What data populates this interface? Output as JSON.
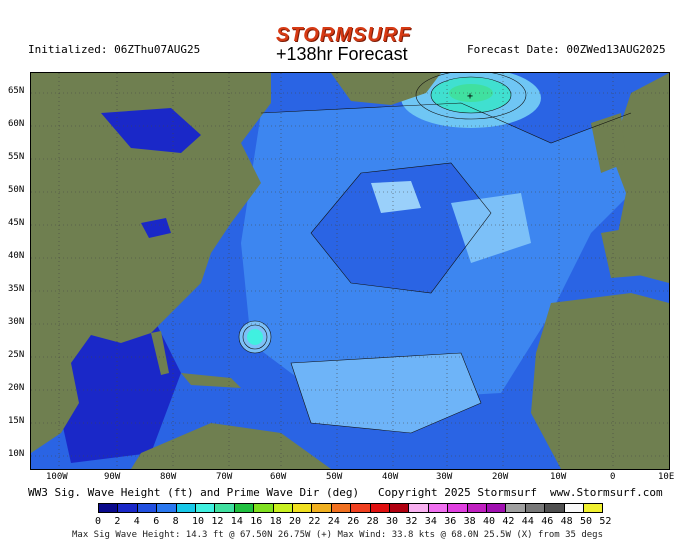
{
  "brand": "STORMSURF",
  "title": "+138hr Forecast",
  "initialized": "Initialized: 06ZThu07AUG25",
  "forecast_date": "Forecast Date: 00ZWed13AUG2025",
  "lat_labels": [
    "65N",
    "60N",
    "55N",
    "50N",
    "45N",
    "40N",
    "35N",
    "30N",
    "25N",
    "20N",
    "15N",
    "10N"
  ],
  "lon_labels": [
    "100W",
    "90W",
    "80W",
    "70W",
    "60W",
    "50W",
    "40W",
    "30W",
    "20W",
    "10W",
    "0",
    "10E"
  ],
  "footer_left": "WW3 Sig. Wave Height (ft) and Prime Wave Dir (deg)",
  "footer_mid": "Copyright 2025 Stormsurf",
  "footer_right": "www.Stormsurf.com",
  "scale_labels": [
    "0",
    "2",
    "4",
    "6",
    "8",
    "10",
    "12",
    "14",
    "16",
    "18",
    "20",
    "22",
    "24",
    "26",
    "28",
    "30",
    "32",
    "34",
    "36",
    "38",
    "40",
    "42",
    "44",
    "46",
    "48",
    "50",
    "52"
  ],
  "scale_colors": [
    "#0a0a8c",
    "#1a28c8",
    "#2250e0",
    "#2a78f0",
    "#18c8e8",
    "#40f0e0",
    "#40e0a0",
    "#20c040",
    "#80e020",
    "#c8f020",
    "#f0e020",
    "#f0b020",
    "#f07020",
    "#f04020",
    "#e01010",
    "#b00010",
    "#f8b0f0",
    "#f070f0",
    "#e040e0",
    "#c020c0",
    "#a010b0",
    "#a0a0a0",
    "#787878",
    "#505050",
    "#f8f8f8",
    "#f0f030"
  ],
  "stats": "Max Sig Wave Height: 14.3 ft @ 67.50N 26.75W (+)  Max Wind: 33.8 kts @ 68.0N 25.5W (X) from 35  degs"
}
